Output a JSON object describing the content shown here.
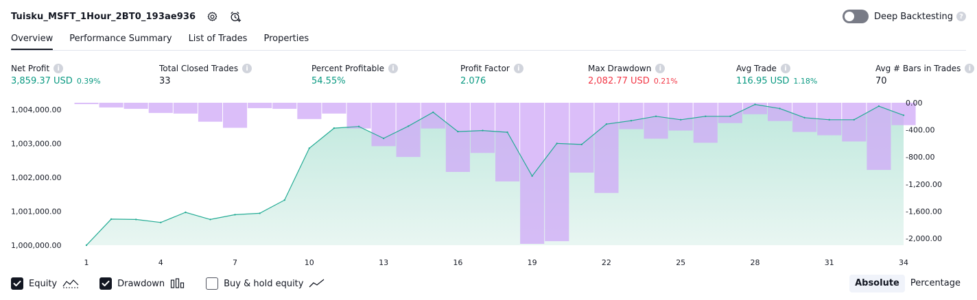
{
  "header": {
    "strategy_name": "Tuisku_MSFT_1Hour_2BT0_193ae936",
    "settings_icon": "gear-icon",
    "alert_icon": "alarm-clock-plus-icon",
    "deep_backtesting_label": "Deep Backtesting",
    "deep_backtesting_enabled": false
  },
  "tabs": [
    {
      "label": "Overview",
      "active": true
    },
    {
      "label": "Performance Summary",
      "active": false
    },
    {
      "label": "List of Trades",
      "active": false
    },
    {
      "label": "Properties",
      "active": false
    }
  ],
  "metrics": [
    {
      "label": "Net Profit",
      "value": "3,859.37 USD",
      "pct": "0.39%",
      "tone": "pos"
    },
    {
      "label": "Total Closed Trades",
      "value": "33",
      "pct": "",
      "tone": "neu"
    },
    {
      "label": "Percent Profitable",
      "value": "54.55%",
      "pct": "",
      "tone": "pos"
    },
    {
      "label": "Profit Factor",
      "value": "2.076",
      "pct": "",
      "tone": "pos"
    },
    {
      "label": "Max Drawdown",
      "value": "2,082.77 USD",
      "pct": "0.21%",
      "tone": "neg"
    },
    {
      "label": "Avg Trade",
      "value": "116.95 USD",
      "pct": "1.18%",
      "tone": "pos"
    },
    {
      "label": "Avg # Bars in Trades",
      "value": "70",
      "pct": "",
      "tone": "neu"
    }
  ],
  "colors": {
    "equity_line": "#22ab94",
    "equity_fill_top": "#bfe8dd",
    "equity_fill_bottom": "#e9f6f2",
    "drawdown_fill": "#cfa8f7",
    "positive": "#089981",
    "negative": "#f23645"
  },
  "chart_data": {
    "type": "area",
    "x": [
      1,
      2,
      3,
      4,
      5,
      6,
      7,
      8,
      9,
      10,
      11,
      12,
      13,
      14,
      15,
      16,
      17,
      18,
      19,
      20,
      21,
      22,
      23,
      24,
      25,
      26,
      27,
      28,
      29,
      30,
      31,
      32,
      33,
      34
    ],
    "x_tick_labels": [
      "1",
      "4",
      "7",
      "10",
      "13",
      "16",
      "19",
      "22",
      "25",
      "28",
      "31",
      "34"
    ],
    "left_axis": {
      "ylim": [
        1000000,
        1004200
      ],
      "tick_labels": [
        "1,000,000.00",
        "1,001,000.00",
        "1,002,000.00",
        "1,003,000.00",
        "1,004,000.00"
      ]
    },
    "right_axis": {
      "ylim": [
        -2100,
        0
      ],
      "tick_labels": [
        "0.00",
        "-400.00",
        "-800.00",
        "-1,200.00",
        "-1,600.00",
        "-2,000.00"
      ]
    },
    "series": [
      {
        "name": "Equity",
        "axis": "left",
        "values": [
          1000000,
          1000770,
          1000760,
          1000670,
          1000970,
          1000760,
          1000900,
          1000940,
          1001330,
          1002860,
          1003450,
          1003500,
          1003150,
          1003510,
          1003920,
          1003350,
          1003380,
          1003330,
          1002040,
          1003000,
          1002970,
          1003570,
          1003670,
          1003800,
          1003700,
          1003800,
          1003800,
          1004150,
          1004030,
          1003760,
          1003700,
          1003700,
          1004100,
          1003830
        ]
      },
      {
        "name": "Drawdown",
        "axis": "right",
        "values": [
          -20,
          -70,
          -90,
          -150,
          -160,
          -280,
          -370,
          -80,
          -90,
          -240,
          -160,
          -380,
          -640,
          -800,
          -380,
          -1020,
          -740,
          -1160,
          -2080,
          -2040,
          -1030,
          -1330,
          -390,
          -530,
          -410,
          -590,
          -300,
          -170,
          -270,
          -430,
          -480,
          -570,
          -990,
          -330
        ]
      }
    ]
  },
  "legend": [
    {
      "label": "Equity",
      "checked": true,
      "glyph": "equity-line-icon"
    },
    {
      "label": "Drawdown",
      "checked": true,
      "glyph": "drawdown-bars-icon"
    },
    {
      "label": "Buy & hold equity",
      "checked": false,
      "glyph": "buy-hold-line-icon"
    }
  ],
  "scale_mode": {
    "options": [
      "Absolute",
      "Percentage"
    ],
    "selected": "Absolute"
  }
}
